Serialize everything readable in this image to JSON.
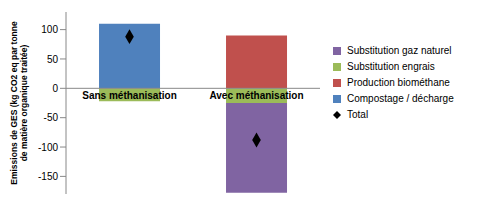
{
  "chart_data": {
    "type": "bar",
    "stacked": true,
    "y_label": "Emissions de GES (kg CO2 eq par tonne de matière organique traitée)",
    "categories": [
      "Sans méthanisation",
      "Avec méthanisation"
    ],
    "series": [
      {
        "name": "Substitution gaz naturel",
        "color": "#8064a2",
        "values": [
          null,
          -153
        ]
      },
      {
        "name": "Substitution engrais",
        "color": "#9bbb59",
        "values": [
          -22,
          -25
        ]
      },
      {
        "name": "Production biométhane",
        "color": "#c0504d",
        "values": [
          null,
          90
        ]
      },
      {
        "name": "Compostage / décharge",
        "color": "#4f81bd",
        "values": [
          110,
          null
        ]
      },
      {
        "name": "Total",
        "type": "scatter",
        "marker": "diamond",
        "color": "#000000",
        "values": [
          88,
          -88
        ]
      }
    ],
    "ylim": [
      -180,
      130
    ],
    "yticks": [
      -150,
      -100,
      -50,
      0,
      50,
      100
    ],
    "grid": false,
    "legend": "right"
  }
}
